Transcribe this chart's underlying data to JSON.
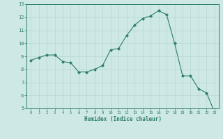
{
  "x": [
    0,
    1,
    2,
    3,
    4,
    5,
    6,
    7,
    8,
    9,
    10,
    11,
    12,
    13,
    14,
    15,
    16,
    17,
    18,
    19,
    20,
    21,
    22,
    23
  ],
  "y": [
    8.7,
    8.9,
    9.1,
    9.1,
    8.6,
    8.5,
    7.8,
    7.8,
    8.0,
    8.3,
    9.5,
    9.6,
    10.6,
    11.4,
    11.9,
    12.1,
    12.5,
    12.2,
    10.0,
    7.5,
    7.5,
    6.5,
    6.2,
    4.7
  ],
  "xlabel": "Humidex (Indice chaleur)",
  "ylim": [
    5,
    13
  ],
  "xlim": [
    -0.5,
    23.5
  ],
  "yticks": [
    5,
    6,
    7,
    8,
    9,
    10,
    11,
    12,
    13
  ],
  "xticks": [
    0,
    1,
    2,
    3,
    4,
    5,
    6,
    7,
    8,
    9,
    10,
    11,
    12,
    13,
    14,
    15,
    16,
    17,
    18,
    19,
    20,
    21,
    22,
    23
  ],
  "line_color": "#2e7d6e",
  "marker_color": "#2e7d6e",
  "bg_color": "#cde8e5",
  "grid_color": "#b8d8d5",
  "axis_color": "#2e7d6e",
  "tick_color": "#2e7d6e",
  "xlabel_color": "#2e7d6e",
  "figure_bg": "#cde8e5"
}
